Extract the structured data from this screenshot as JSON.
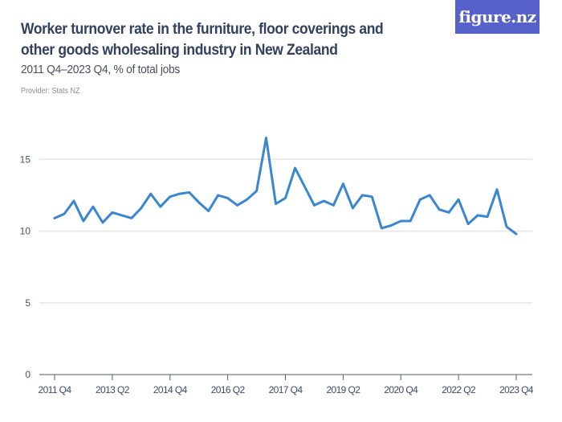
{
  "header": {
    "title": "Worker turnover rate in the furniture, floor coverings and other goods wholesaling industry in New Zealand",
    "subtitle": "2011 Q4–2023 Q4, % of total jobs",
    "provider": "Provider: Stats NZ",
    "logo": "figure.nz"
  },
  "colors": {
    "line": "#3a86d0",
    "grid": "#e6e6e6",
    "axis": "#555a66",
    "logo_bg": "#5662c9"
  },
  "chart_data": {
    "type": "line",
    "title": "Worker turnover rate in the furniture, floor coverings and other goods wholesaling industry in New Zealand",
    "subtitle": "2011 Q4–2023 Q4, % of total jobs",
    "xlabel": "",
    "ylabel": "% of total jobs",
    "ylim": [
      0,
      17
    ],
    "yticks": [
      0,
      5,
      10,
      15
    ],
    "xtick_labels": [
      "2011 Q4",
      "2013 Q2",
      "2014 Q4",
      "2016 Q2",
      "2017 Q4",
      "2019 Q2",
      "2020 Q4",
      "2022 Q2",
      "2023 Q4"
    ],
    "grid": true,
    "legend": "none",
    "series": [
      {
        "name": "Worker turnover rate",
        "x": [
          "2011 Q4",
          "2012 Q1",
          "2012 Q2",
          "2012 Q3",
          "2012 Q4",
          "2013 Q1",
          "2013 Q2",
          "2013 Q3",
          "2013 Q4",
          "2014 Q1",
          "2014 Q2",
          "2014 Q3",
          "2014 Q4",
          "2015 Q1",
          "2015 Q2",
          "2015 Q3",
          "2015 Q4",
          "2016 Q1",
          "2016 Q2",
          "2016 Q3",
          "2016 Q4",
          "2017 Q1",
          "2017 Q2",
          "2017 Q3",
          "2017 Q4",
          "2018 Q1",
          "2018 Q2",
          "2018 Q3",
          "2018 Q4",
          "2019 Q1",
          "2019 Q2",
          "2019 Q3",
          "2019 Q4",
          "2020 Q1",
          "2020 Q2",
          "2020 Q3",
          "2020 Q4",
          "2021 Q1",
          "2021 Q2",
          "2021 Q3",
          "2021 Q4",
          "2022 Q1",
          "2022 Q2",
          "2022 Q3",
          "2022 Q4",
          "2023 Q1",
          "2023 Q2",
          "2023 Q3",
          "2023 Q4"
        ],
        "values": [
          10.9,
          11.2,
          12.1,
          10.7,
          11.7,
          10.6,
          11.3,
          11.1,
          10.9,
          11.6,
          12.6,
          11.7,
          12.4,
          12.6,
          12.7,
          12.0,
          11.4,
          12.5,
          12.3,
          11.8,
          12.2,
          12.8,
          16.5,
          11.9,
          12.3,
          14.4,
          13.1,
          11.8,
          12.1,
          11.8,
          13.3,
          11.6,
          12.5,
          12.4,
          10.2,
          10.4,
          10.7,
          10.7,
          12.2,
          12.5,
          11.5,
          11.3,
          12.2,
          10.5,
          11.1,
          11.0,
          12.9,
          10.3,
          9.8
        ]
      }
    ]
  }
}
